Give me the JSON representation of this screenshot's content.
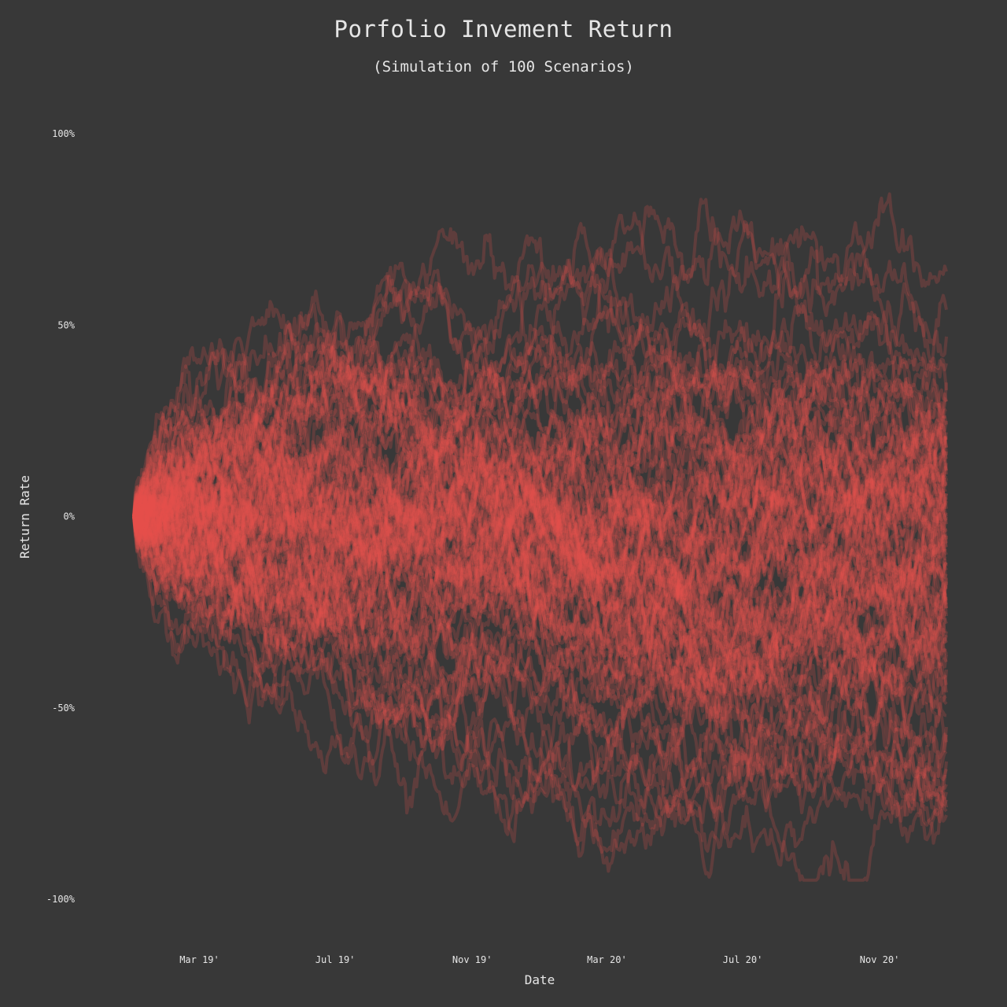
{
  "chart_data": {
    "type": "line",
    "title": "Porfolio Invement Return",
    "subtitle": "(Simulation of 100 Scenarios)",
    "xlabel": "Date",
    "ylabel": "Return Rate",
    "x_start": "2019-01-01",
    "x_end": "2020-12-31",
    "x_ticks": [
      {
        "date": "2019-03-01",
        "label": "Mar 19'"
      },
      {
        "date": "2019-07-01",
        "label": "Jul 19'"
      },
      {
        "date": "2019-11-01",
        "label": "Nov 19'"
      },
      {
        "date": "2020-03-01",
        "label": "Mar 20'"
      },
      {
        "date": "2020-07-01",
        "label": "Jul 20'"
      },
      {
        "date": "2020-11-01",
        "label": "Nov 20'"
      }
    ],
    "ylim": [
      -100,
      100
    ],
    "y_ticks": [
      {
        "value": 100,
        "label": "100%"
      },
      {
        "value": 50,
        "label": "50%"
      },
      {
        "value": 0,
        "label": "0%"
      },
      {
        "value": -50,
        "label": "-50%"
      },
      {
        "value": -100,
        "label": "-100%"
      }
    ],
    "grid": false,
    "series_count": 100,
    "line_color": "#e8504f",
    "line_opacity": 0.22,
    "background": "#383838",
    "text_color": "#e6e6e6",
    "final_return_values": [
      64,
      54,
      47,
      40,
      35,
      33,
      30,
      28,
      26,
      24,
      22,
      21,
      20,
      18,
      17,
      16,
      15,
      14,
      13,
      12,
      11,
      10,
      9,
      8,
      7,
      6,
      5,
      4,
      3,
      2,
      1,
      0,
      -1,
      -2,
      -3,
      -4,
      -5,
      -6,
      -7,
      -8,
      -9,
      -10,
      -11,
      -12,
      -13,
      -14,
      -15,
      -16,
      -17,
      -18,
      -19,
      -20,
      -21,
      -22,
      -23,
      -24,
      -25,
      -26,
      -27,
      -28,
      -30,
      -31,
      -33,
      -35,
      -36,
      -38,
      -40,
      -42,
      -44,
      -46,
      -47,
      -49,
      -52,
      -55,
      -57,
      -59,
      -62,
      -64,
      -66,
      -68,
      -70,
      -72,
      -74,
      -76,
      -77,
      -78,
      25,
      18,
      12,
      6,
      0,
      -5,
      -12,
      -18,
      -24,
      -30,
      -36,
      30,
      20,
      10
    ]
  }
}
